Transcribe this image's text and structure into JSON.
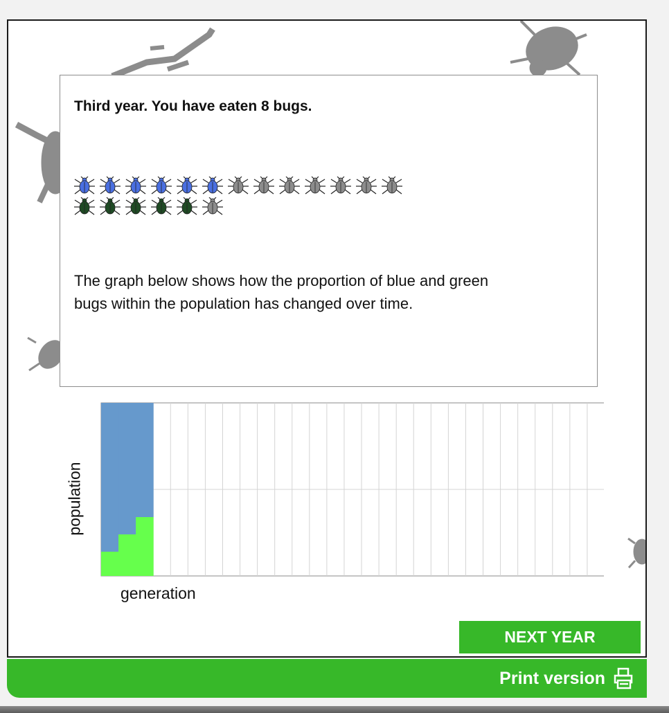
{
  "message": {
    "title": "Third year. You have eaten 8 bugs.",
    "body": "The graph below shows how the proportion of blue and green bugs within the population has changed over time."
  },
  "bug_rows": [
    {
      "icon": "blue-beetle-icon",
      "color": "#4a6fe0",
      "alive": 6,
      "eaten": 7
    },
    {
      "icon": "green-beetle-icon",
      "color": "#1f4a24",
      "alive": 5,
      "eaten": 1
    }
  ],
  "chart_data": {
    "type": "area",
    "xlabel": "generation",
    "ylabel": "population",
    "x_total_generations": 29,
    "series": [
      {
        "name": "blue",
        "color": "#6699cc",
        "values": [
          0.86,
          0.76,
          0.66
        ]
      },
      {
        "name": "green",
        "color": "#66ff4c",
        "values": [
          0.14,
          0.24,
          0.34
        ]
      }
    ],
    "stacked_normalized": true,
    "grid": true
  },
  "buttons": {
    "next_year": "NEXT YEAR"
  },
  "footer": {
    "print_label": "Print version",
    "print_icon": "printer-icon"
  },
  "colors": {
    "accent": "#37b829",
    "decor": "#8c8c8c"
  }
}
